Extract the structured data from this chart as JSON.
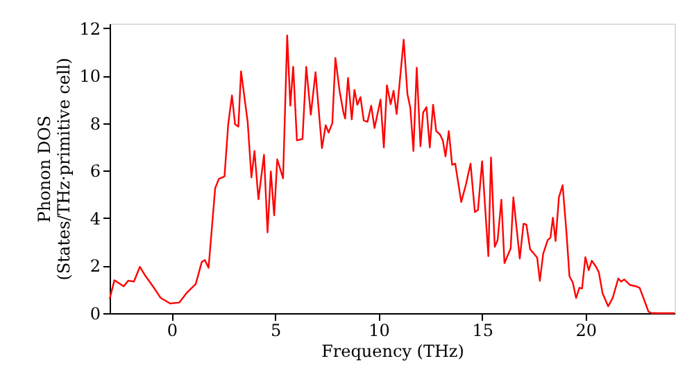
{
  "chart_data": {
    "type": "line",
    "xlabel": "Frequency (THz)",
    "ylabel": "Phonon DOS\n(States/THz·primitive cell)",
    "x": [
      -3.0,
      -2.77,
      -2.32,
      -2.1,
      -1.83,
      -1.54,
      -1.31,
      -0.91,
      -0.53,
      -0.08,
      0.37,
      0.71,
      1.16,
      1.45,
      1.6,
      1.78,
      2.1,
      2.28,
      2.55,
      2.73,
      2.91,
      3.06,
      3.22,
      3.35,
      3.67,
      3.85,
      4.0,
      4.19,
      4.46,
      4.63,
      4.79,
      4.95,
      5.1,
      5.38,
      5.58,
      5.73,
      5.87,
      6.05,
      6.32,
      6.5,
      6.72,
      6.95,
      7.26,
      7.44,
      7.58,
      7.76,
      7.91,
      8.11,
      8.3,
      8.38,
      8.52,
      8.7,
      8.83,
      8.97,
      9.12,
      9.28,
      9.46,
      9.64,
      9.8,
      10.09,
      10.25,
      10.4,
      10.58,
      10.72,
      10.87,
      11.21,
      11.39,
      11.53,
      11.68,
      11.84,
      12.02,
      12.15,
      12.31,
      12.47,
      12.63,
      12.78,
      12.96,
      13.1,
      13.23,
      13.39,
      13.55,
      13.7,
      13.99,
      14.22,
      14.44,
      14.65,
      14.8,
      15.0,
      15.3,
      15.43,
      15.61,
      15.75,
      15.93,
      16.08,
      16.38,
      16.51,
      16.82,
      17.0,
      17.14,
      17.32,
      17.66,
      17.79,
      17.95,
      18.17,
      18.3,
      18.42,
      18.55,
      18.71,
      18.89,
      19.07,
      19.22,
      19.38,
      19.54,
      19.7,
      19.83,
      19.99,
      20.15,
      20.3,
      20.51,
      20.64,
      20.82,
      21.09,
      21.31,
      21.58,
      21.72,
      21.87,
      22.14,
      22.44,
      22.61,
      22.84,
      23.04,
      23.2,
      24.3
    ],
    "series": [
      {
        "color": "#ff0000",
        "values": [
          0.6,
          1.39,
          1.13,
          1.37,
          1.33,
          1.95,
          1.62,
          1.13,
          0.64,
          0.41,
          0.45,
          0.84,
          1.23,
          2.15,
          2.24,
          1.91,
          5.27,
          5.66,
          5.76,
          7.96,
          9.17,
          7.96,
          7.86,
          10.19,
          8.06,
          5.72,
          6.83,
          4.8,
          6.67,
          3.4,
          5.97,
          4.12,
          6.48,
          5.68,
          11.7,
          8.74,
          10.38,
          7.28,
          7.34,
          10.38,
          8.36,
          10.15,
          6.95,
          7.92,
          7.61,
          8.0,
          10.75,
          9.37,
          8.45,
          8.2,
          9.91,
          8.16,
          9.41,
          8.78,
          9.1,
          8.12,
          8.06,
          8.74,
          7.8,
          9.0,
          6.98,
          9.6,
          8.8,
          9.37,
          8.39,
          11.52,
          9.23,
          8.65,
          6.83,
          10.34,
          7.03,
          8.45,
          8.68,
          6.98,
          8.78,
          7.67,
          7.53,
          7.28,
          6.6,
          7.67,
          6.25,
          6.3,
          4.68,
          5.43,
          6.3,
          4.26,
          4.35,
          6.4,
          2.4,
          6.56,
          2.79,
          3.08,
          4.78,
          2.11,
          2.73,
          4.88,
          2.3,
          3.77,
          3.73,
          2.69,
          2.34,
          1.36,
          2.5,
          3.08,
          3.18,
          4.02,
          3.04,
          4.88,
          5.39,
          3.47,
          1.56,
          1.29,
          0.64,
          1.07,
          1.04,
          2.36,
          1.81,
          2.21,
          1.95,
          1.72,
          0.84,
          0.29,
          0.64,
          1.46,
          1.33,
          1.42,
          1.19,
          1.13,
          1.07,
          0.54,
          0.06,
          0.0,
          0.0
        ]
      }
    ],
    "xlim": [
      -3,
      24.3
    ],
    "xticks": [
      0,
      5,
      10,
      15,
      20
    ],
    "ylim": [
      0,
      12.2
    ],
    "yticks": [
      0,
      2,
      4,
      6,
      8,
      10,
      12
    ],
    "grid": false
  }
}
